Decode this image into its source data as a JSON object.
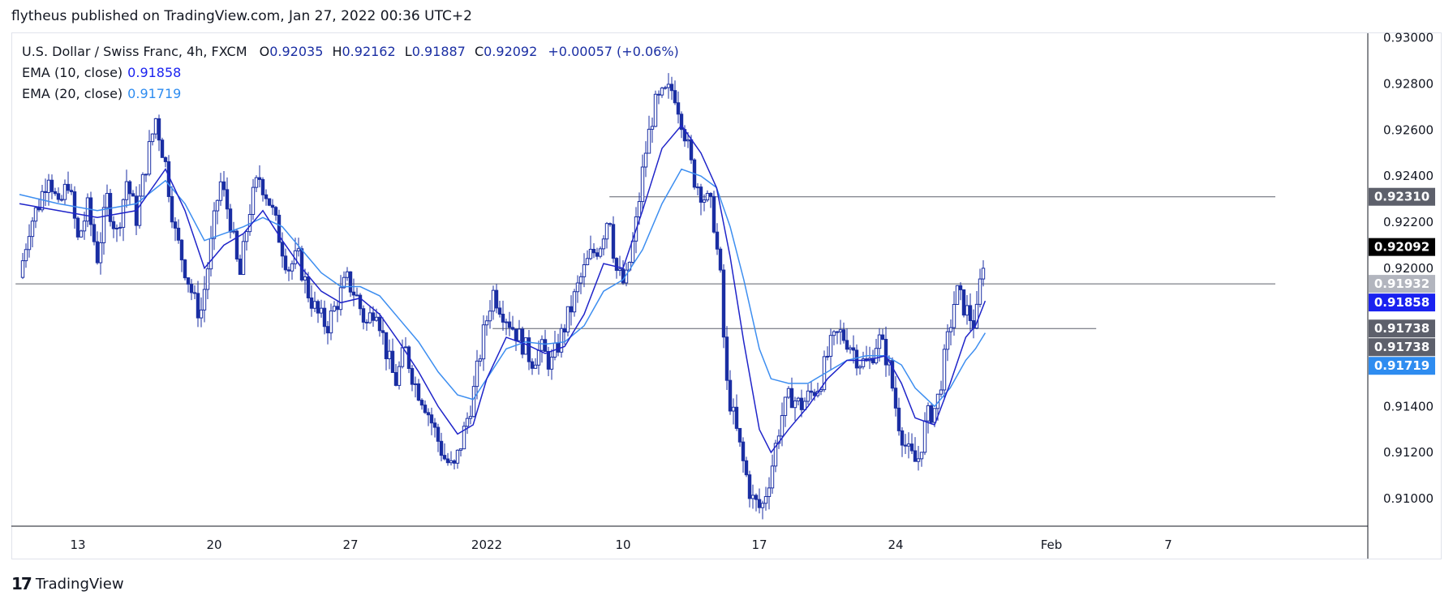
{
  "header": {
    "text": "flytheus published on TradingView.com, Jan 27, 2022 00:36 UTC+2"
  },
  "legend": {
    "symbol": "U.S. Dollar / Swiss Franc, 4h, FXCM",
    "open_label": "O",
    "open": "0.92035",
    "high_label": "H",
    "high": "0.92162",
    "low_label": "L",
    "low": "0.91887",
    "close_label": "C",
    "close": "0.92092",
    "change": "+0.00057 (+0.06%)",
    "ema10_label": "EMA (10, close)",
    "ema10_value": "0.91858",
    "ema20_label": "EMA (20, close)",
    "ema20_value": "0.91719"
  },
  "footer": {
    "logo": "17",
    "brand": "TradingView"
  },
  "colors": {
    "up": "#ffffff",
    "down": "#1a2ea3",
    "wick": "#1a2ea3",
    "ema10": "#1f24c9",
    "ema20": "#3d8ef0",
    "tag_dark": "#000000",
    "tag_gray": "#5d606b",
    "tag_blue": "#1a22f0",
    "tag_lightblue": "#2e8cf0"
  },
  "chart_data": {
    "type": "candlestick",
    "ylim": [
      0.9088,
      0.9302
    ],
    "y_ticks": [
      "0.93000",
      "0.92800",
      "0.92600",
      "0.92400",
      "0.92200",
      "0.92000",
      "0.91400",
      "0.91200",
      "0.91000"
    ],
    "y_tick_values": [
      0.93,
      0.928,
      0.926,
      0.924,
      0.922,
      0.92,
      0.914,
      0.912,
      0.91
    ],
    "x_ticks": [
      {
        "label": "13",
        "d": 0
      },
      {
        "label": "20",
        "d": 7
      },
      {
        "label": "27",
        "d": 14
      },
      {
        "label": "2022",
        "d": 21
      },
      {
        "label": "10",
        "d": 28
      },
      {
        "label": "17",
        "d": 35
      },
      {
        "label": "24",
        "d": 42
      },
      {
        "label": "Feb",
        "d": 50
      },
      {
        "label": "7",
        "d": 56
      }
    ],
    "horizontal_lines": [
      {
        "value": 0.9231,
        "from_d": 27.3,
        "to_d": 61.5
      },
      {
        "value": 0.91932,
        "from_d": -3.2,
        "to_d": 61.5
      },
      {
        "value": 0.91738,
        "from_d": 21.3,
        "to_d": 52.3
      }
    ],
    "price_tags": [
      {
        "label": "0.92310",
        "value": 0.9231,
        "color": "#5d606b",
        "text_color": "#ffffff"
      },
      {
        "label": "0.92092",
        "value": 0.92092,
        "color": "#000000",
        "text_color": "#ffffff"
      },
      {
        "label": "0.91932",
        "value": 0.91932,
        "color": "#b2b5be",
        "text_color": "#ffffff"
      },
      {
        "label": "0.91858",
        "value": 0.91858,
        "color": "#1a22f0",
        "text_color": "#ffffff"
      },
      {
        "label": "0.91738",
        "value": 0.91738,
        "color": "#5d606b",
        "text_color": "#ffffff"
      },
      {
        "label": "0.91738",
        "value": 0.91738,
        "color": "#5d606b",
        "text_color": "#ffffff",
        "nudge": 1
      },
      {
        "label": "0.91719",
        "value": 0.91719,
        "color": "#2e8cf0",
        "text_color": "#ffffff"
      }
    ],
    "price_path": [
      [
        -3.0,
        0.9196
      ],
      [
        -2.5,
        0.9218
      ],
      [
        -2.0,
        0.9228
      ],
      [
        -1.5,
        0.9242
      ],
      [
        -1.0,
        0.9225
      ],
      [
        -0.5,
        0.9238
      ],
      [
        0.0,
        0.9212
      ],
      [
        0.5,
        0.9226
      ],
      [
        1.0,
        0.9205
      ],
      [
        1.5,
        0.923
      ],
      [
        2.0,
        0.9215
      ],
      [
        2.5,
        0.9238
      ],
      [
        3.0,
        0.9222
      ],
      [
        3.5,
        0.9245
      ],
      [
        4.0,
        0.9265
      ],
      [
        4.5,
        0.9245
      ],
      [
        5.0,
        0.9215
      ],
      [
        5.5,
        0.92
      ],
      [
        6.0,
        0.9185
      ],
      [
        6.3,
        0.918
      ],
      [
        6.8,
        0.9208
      ],
      [
        7.3,
        0.9238
      ],
      [
        7.8,
        0.9222
      ],
      [
        8.3,
        0.9195
      ],
      [
        8.8,
        0.9225
      ],
      [
        9.3,
        0.924
      ],
      [
        9.8,
        0.923
      ],
      [
        10.3,
        0.9215
      ],
      [
        10.8,
        0.92
      ],
      [
        11.3,
        0.9205
      ],
      [
        11.8,
        0.919
      ],
      [
        12.3,
        0.918
      ],
      [
        12.8,
        0.9175
      ],
      [
        13.3,
        0.9185
      ],
      [
        13.8,
        0.9195
      ],
      [
        14.3,
        0.9188
      ],
      [
        14.8,
        0.9175
      ],
      [
        15.3,
        0.9185
      ],
      [
        15.8,
        0.9165
      ],
      [
        16.3,
        0.915
      ],
      [
        16.8,
        0.9165
      ],
      [
        17.3,
        0.915
      ],
      [
        17.8,
        0.9142
      ],
      [
        18.3,
        0.913
      ],
      [
        18.8,
        0.9118
      ],
      [
        19.3,
        0.9112
      ],
      [
        19.8,
        0.9128
      ],
      [
        20.3,
        0.9145
      ],
      [
        20.8,
        0.917
      ],
      [
        21.3,
        0.919
      ],
      [
        21.8,
        0.9182
      ],
      [
        22.3,
        0.9175
      ],
      [
        22.8,
        0.9168
      ],
      [
        23.3,
        0.916
      ],
      [
        23.8,
        0.9165
      ],
      [
        24.3,
        0.9158
      ],
      [
        24.8,
        0.917
      ],
      [
        25.3,
        0.9182
      ],
      [
        25.8,
        0.9195
      ],
      [
        26.3,
        0.9205
      ],
      [
        26.8,
        0.921
      ],
      [
        27.3,
        0.9225
      ],
      [
        27.6,
        0.92
      ],
      [
        28.1,
        0.9192
      ],
      [
        28.6,
        0.9215
      ],
      [
        29.1,
        0.9248
      ],
      [
        29.6,
        0.927
      ],
      [
        30.1,
        0.9275
      ],
      [
        30.6,
        0.9278
      ],
      [
        31.1,
        0.9262
      ],
      [
        31.6,
        0.924
      ],
      [
        32.1,
        0.9232
      ],
      [
        32.6,
        0.9225
      ],
      [
        33.0,
        0.9195
      ],
      [
        33.3,
        0.915
      ],
      [
        33.6,
        0.9138
      ],
      [
        34.1,
        0.9118
      ],
      [
        34.6,
        0.91
      ],
      [
        35.1,
        0.9095
      ],
      [
        35.6,
        0.9112
      ],
      [
        36.1,
        0.9135
      ],
      [
        36.6,
        0.9145
      ],
      [
        37.1,
        0.914
      ],
      [
        37.6,
        0.9145
      ],
      [
        38.1,
        0.915
      ],
      [
        38.6,
        0.9165
      ],
      [
        39.1,
        0.9172
      ],
      [
        39.6,
        0.9168
      ],
      [
        40.1,
        0.916
      ],
      [
        40.6,
        0.9158
      ],
      [
        41.1,
        0.917
      ],
      [
        41.6,
        0.916
      ],
      [
        42.1,
        0.9135
      ],
      [
        42.6,
        0.912
      ],
      [
        43.1,
        0.9115
      ],
      [
        43.6,
        0.9135
      ],
      [
        44.1,
        0.914
      ],
      [
        44.6,
        0.9165
      ],
      [
        45.1,
        0.919
      ],
      [
        45.6,
        0.9182
      ],
      [
        46.1,
        0.9175
      ],
      [
        46.4,
        0.9198
      ],
      [
        46.6,
        0.9209
      ]
    ],
    "ema10_path": [
      [
        -3.0,
        0.9228
      ],
      [
        -1.0,
        0.9225
      ],
      [
        1.0,
        0.9222
      ],
      [
        3.0,
        0.9225
      ],
      [
        4.5,
        0.9243
      ],
      [
        5.5,
        0.9225
      ],
      [
        6.5,
        0.92
      ],
      [
        7.5,
        0.921
      ],
      [
        8.5,
        0.9215
      ],
      [
        9.5,
        0.9225
      ],
      [
        10.5,
        0.9212
      ],
      [
        11.5,
        0.92
      ],
      [
        12.5,
        0.919
      ],
      [
        13.5,
        0.9185
      ],
      [
        14.5,
        0.9187
      ],
      [
        15.5,
        0.918
      ],
      [
        16.5,
        0.9168
      ],
      [
        17.5,
        0.9155
      ],
      [
        18.5,
        0.914
      ],
      [
        19.5,
        0.9128
      ],
      [
        20.3,
        0.9132
      ],
      [
        21.0,
        0.9152
      ],
      [
        22.0,
        0.917
      ],
      [
        23.0,
        0.9167
      ],
      [
        24.0,
        0.9163
      ],
      [
        25.0,
        0.9166
      ],
      [
        26.0,
        0.918
      ],
      [
        27.0,
        0.9202
      ],
      [
        28.0,
        0.92
      ],
      [
        29.0,
        0.9225
      ],
      [
        30.0,
        0.9252
      ],
      [
        31.0,
        0.9262
      ],
      [
        32.0,
        0.925
      ],
      [
        32.8,
        0.9235
      ],
      [
        33.5,
        0.9205
      ],
      [
        34.2,
        0.9168
      ],
      [
        35.0,
        0.913
      ],
      [
        35.6,
        0.912
      ],
      [
        36.5,
        0.913
      ],
      [
        37.5,
        0.914
      ],
      [
        38.5,
        0.9152
      ],
      [
        39.5,
        0.916
      ],
      [
        40.5,
        0.916
      ],
      [
        41.5,
        0.9162
      ],
      [
        42.3,
        0.915
      ],
      [
        43.0,
        0.9135
      ],
      [
        44.0,
        0.9132
      ],
      [
        44.8,
        0.915
      ],
      [
        45.6,
        0.917
      ],
      [
        46.1,
        0.9175
      ],
      [
        46.6,
        0.91858
      ]
    ],
    "ema20_path": [
      [
        -3.0,
        0.9232
      ],
      [
        -1.0,
        0.9228
      ],
      [
        1.0,
        0.9225
      ],
      [
        3.0,
        0.9228
      ],
      [
        4.5,
        0.9238
      ],
      [
        5.5,
        0.9228
      ],
      [
        6.5,
        0.9212
      ],
      [
        7.5,
        0.9215
      ],
      [
        8.5,
        0.9218
      ],
      [
        9.5,
        0.9222
      ],
      [
        10.5,
        0.9218
      ],
      [
        11.5,
        0.9208
      ],
      [
        12.5,
        0.9198
      ],
      [
        13.5,
        0.9192
      ],
      [
        14.5,
        0.9192
      ],
      [
        15.5,
        0.9188
      ],
      [
        16.5,
        0.9178
      ],
      [
        17.5,
        0.9168
      ],
      [
        18.5,
        0.9155
      ],
      [
        19.5,
        0.9145
      ],
      [
        20.3,
        0.9143
      ],
      [
        21.0,
        0.9152
      ],
      [
        22.0,
        0.9165
      ],
      [
        23.0,
        0.9168
      ],
      [
        24.0,
        0.9167
      ],
      [
        25.0,
        0.9168
      ],
      [
        26.0,
        0.9175
      ],
      [
        27.0,
        0.919
      ],
      [
        28.0,
        0.9195
      ],
      [
        29.0,
        0.9208
      ],
      [
        30.0,
        0.9228
      ],
      [
        31.0,
        0.9243
      ],
      [
        32.0,
        0.924
      ],
      [
        32.8,
        0.9235
      ],
      [
        33.5,
        0.9218
      ],
      [
        34.2,
        0.9195
      ],
      [
        35.0,
        0.9165
      ],
      [
        35.6,
        0.9152
      ],
      [
        36.5,
        0.915
      ],
      [
        37.5,
        0.915
      ],
      [
        38.5,
        0.9155
      ],
      [
        39.5,
        0.916
      ],
      [
        40.5,
        0.9162
      ],
      [
        41.5,
        0.9162
      ],
      [
        42.3,
        0.9158
      ],
      [
        43.0,
        0.9148
      ],
      [
        44.0,
        0.914
      ],
      [
        44.8,
        0.9148
      ],
      [
        45.6,
        0.916
      ],
      [
        46.1,
        0.9165
      ],
      [
        46.6,
        0.91719
      ]
    ]
  }
}
